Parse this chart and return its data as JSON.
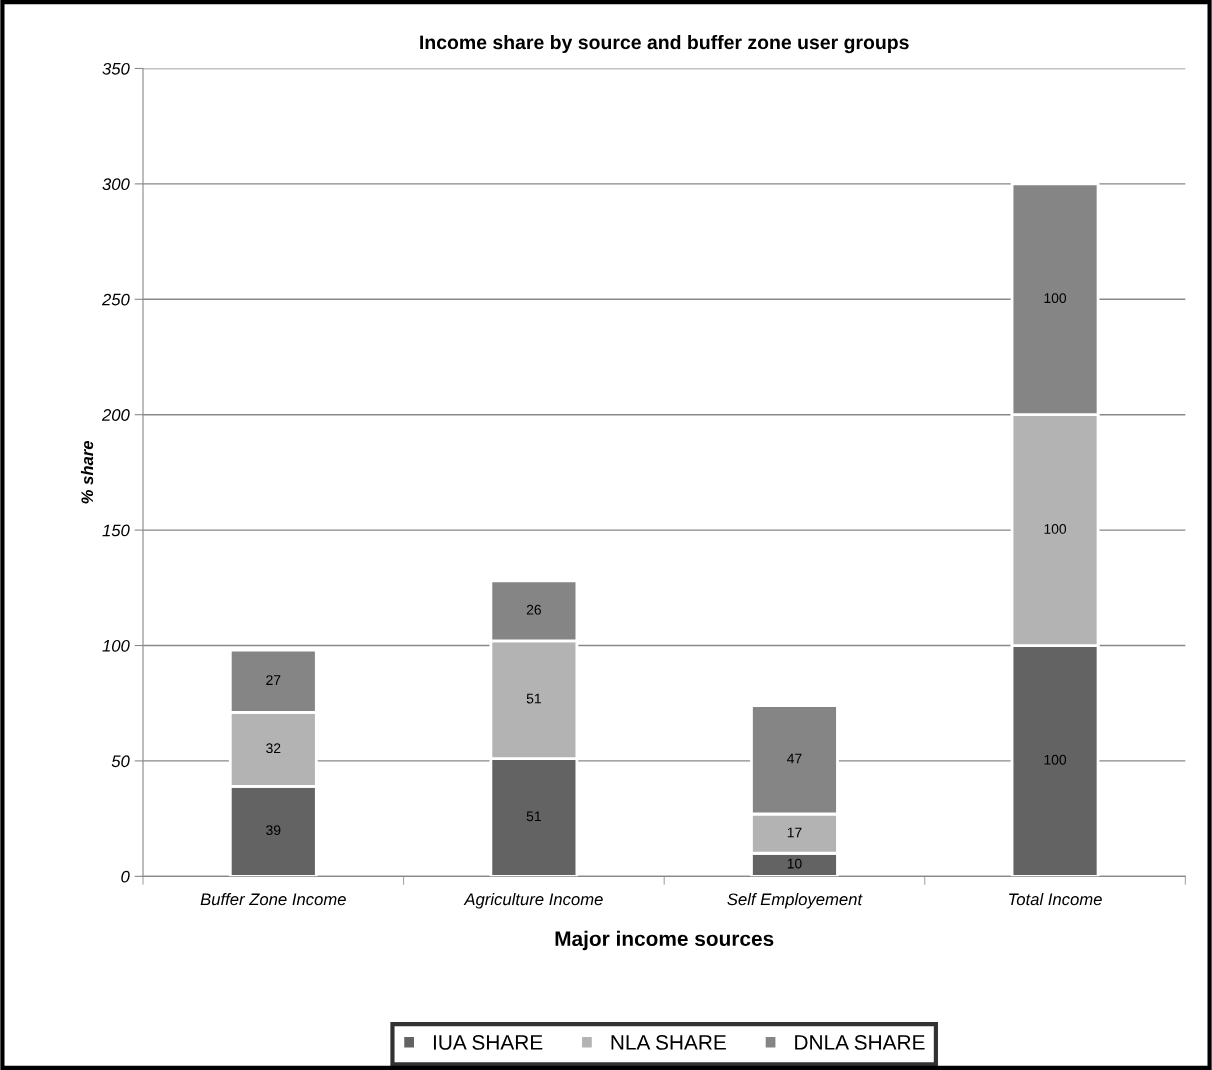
{
  "chart_data": {
    "type": "bar",
    "title": "Income share by source and buffer zone user groups",
    "xlabel": "Major income sources",
    "ylabel": "% share",
    "categories": [
      "Buffer Zone Income",
      "Agriculture Income",
      "Self Employement",
      "Total Income"
    ],
    "series": [
      {
        "name": "IUA SHARE",
        "color": "#636363",
        "values": [
          39,
          51,
          10,
          100
        ]
      },
      {
        "name": "NLA SHARE",
        "color": "#b3b3b3",
        "values": [
          32,
          51,
          17,
          100
        ]
      },
      {
        "name": "DNLA SHARE",
        "color": "#858585",
        "values": [
          27,
          26,
          47,
          100
        ]
      }
    ],
    "stacked": true,
    "ylim": [
      0,
      350
    ],
    "yticks": [
      0,
      50,
      100,
      150,
      200,
      250,
      300,
      350
    ],
    "grid": "y",
    "legend": "bottom",
    "data_labels": true
  }
}
